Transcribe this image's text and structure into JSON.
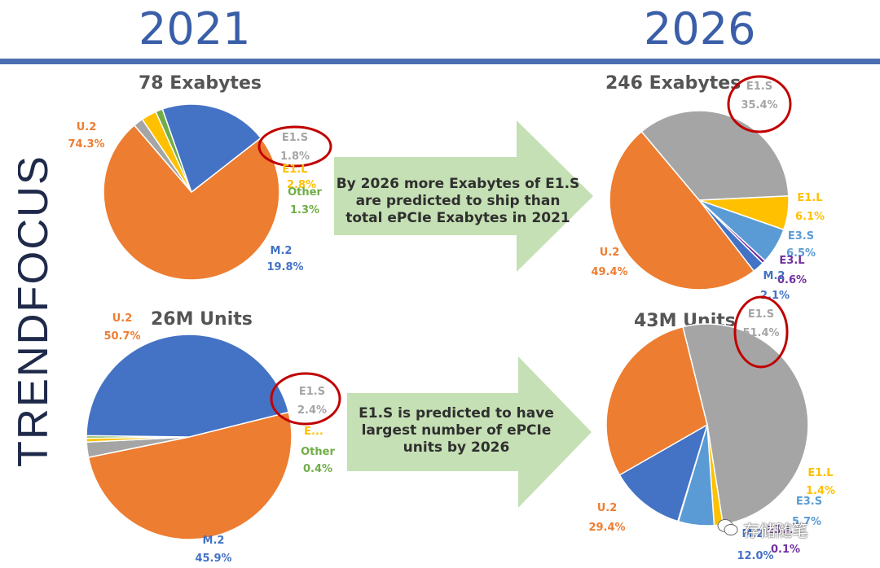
{
  "header": {
    "year_left": "2021",
    "year_right": "2026",
    "brand": "TRENDFOCUS"
  },
  "arrows": {
    "top_text": "By 2026 more Exabytes of E1.S are predicted to ship than total ePCIe Exabytes in 2021",
    "bottom_text": "E1.S is predicted to have largest number of ePCIe units by 2026"
  },
  "watermark": "存储随笔",
  "colors": {
    "U.2": "#ed7d31",
    "M.2": "#4472c4",
    "E1.S": "#a5a5a5",
    "E1.L": "#ffc000",
    "E3.S": "#5b9bd5",
    "E3.L": "#7030a0",
    "Other": "#70ad47",
    "highlight_ring": "#c00000",
    "arrow": "#c5e0b4"
  },
  "chart_data": [
    {
      "type": "pie",
      "title": "78 Exabytes",
      "slices": [
        {
          "label": "U.2",
          "value": 74.3,
          "display": "74.3%"
        },
        {
          "label": "E1.S",
          "value": 1.8,
          "display": "1.8%"
        },
        {
          "label": "E1.L",
          "value": 2.8,
          "display": "2.8%"
        },
        {
          "label": "Other",
          "value": 1.3,
          "display": "1.3%"
        },
        {
          "label": "M.2",
          "value": 19.8,
          "display": "19.8%"
        }
      ],
      "highlight": "E1.S"
    },
    {
      "type": "pie",
      "title": "246 Exabytes",
      "slices": [
        {
          "label": "E1.S",
          "value": 35.4,
          "display": "35.4%"
        },
        {
          "label": "E1.L",
          "value": 6.1,
          "display": "6.1%"
        },
        {
          "label": "E3.S",
          "value": 6.5,
          "display": "6.5%"
        },
        {
          "label": "E3.L",
          "value": 0.6,
          "display": "0.6%"
        },
        {
          "label": "M.2",
          "value": 2.1,
          "display": "2.1%"
        },
        {
          "label": "U.2",
          "value": 49.4,
          "display": "49.4%"
        }
      ],
      "highlight": "E1.S"
    },
    {
      "type": "pie",
      "title": "26M Units",
      "slices": [
        {
          "label": "U.2",
          "value": 50.7,
          "display": "50.7%"
        },
        {
          "label": "E1.S",
          "value": 2.4,
          "display": "2.4%"
        },
        {
          "label": "E...",
          "value": 0.6,
          "display": ""
        },
        {
          "label": "Other",
          "value": 0.4,
          "display": "0.4%"
        },
        {
          "label": "M.2",
          "value": 45.9,
          "display": "45.9%"
        }
      ],
      "highlight": "E1.S"
    },
    {
      "type": "pie",
      "title": "43M Units",
      "slices": [
        {
          "label": "E1.S",
          "value": 51.4,
          "display": "51.4%"
        },
        {
          "label": "E1.L",
          "value": 1.4,
          "display": "1.4%"
        },
        {
          "label": "E3.S",
          "value": 5.7,
          "display": "5.7%"
        },
        {
          "label": "E3.L",
          "value": 0.1,
          "display": "0.1%"
        },
        {
          "label": "M.2",
          "value": 12.0,
          "display": "12.0%"
        },
        {
          "label": "U.2",
          "value": 29.4,
          "display": "29.4%"
        }
      ],
      "highlight": "E1.S"
    }
  ]
}
